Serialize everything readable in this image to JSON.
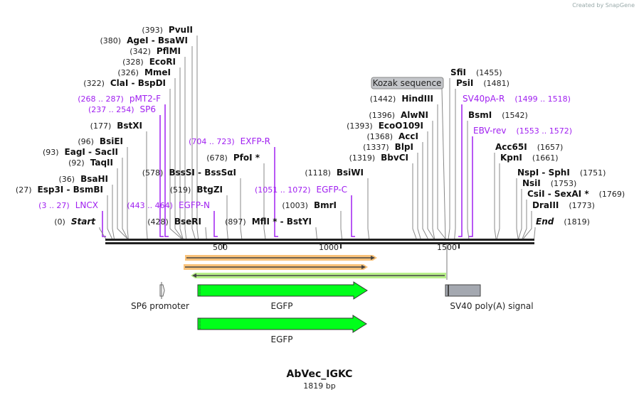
{
  "credit": "Created by SnapGene",
  "title": "AbVec_IGKC",
  "length": "1819 bp",
  "ruler": [
    "500",
    "1000",
    "1500"
  ],
  "sites": [
    {
      "pos": "(393)",
      "name": "PvuII",
      "kind": "enzyme"
    },
    {
      "pos": "(380)",
      "name": "AgeI  -  BsaWI",
      "kind": "enzyme"
    },
    {
      "pos": "(342)",
      "name": "PflMI",
      "kind": "enzyme"
    },
    {
      "pos": "(328)",
      "name": "EcoRI",
      "kind": "enzyme"
    },
    {
      "pos": "(326)",
      "name": "MmeI",
      "kind": "enzyme"
    },
    {
      "pos": "(322)",
      "name": "ClaI  -  BspDI",
      "kind": "enzyme"
    },
    {
      "pos": "(268 .. 287)",
      "name": "pMT2-F",
      "kind": "primer"
    },
    {
      "pos": "(237 .. 254)",
      "name": "SP6",
      "kind": "primer"
    },
    {
      "pos": "(177)",
      "name": "BstXI",
      "kind": "enzyme"
    },
    {
      "pos": "(96)",
      "name": "BsiEI",
      "kind": "enzyme"
    },
    {
      "pos": "(93)",
      "name": "EagI  -  SacII",
      "kind": "enzyme"
    },
    {
      "pos": "(92)",
      "name": "TaqII",
      "kind": "enzyme"
    },
    {
      "pos": "(36)",
      "name": "BsaHI",
      "kind": "enzyme"
    },
    {
      "pos": "(27)",
      "name": "Esp3I  -  BsmBI",
      "kind": "enzyme"
    },
    {
      "pos": "(3 .. 27)",
      "name": "LNCX",
      "kind": "primer"
    },
    {
      "pos": "(0)",
      "name": "Start",
      "kind": "end"
    },
    {
      "pos": "(578)",
      "name": "BssSI  -  BssSαI",
      "kind": "enzyme"
    },
    {
      "pos": "(519)",
      "name": "BtgZI",
      "kind": "enzyme"
    },
    {
      "pos": "(443 .. 464)",
      "name": "EGFP-N",
      "kind": "primer"
    },
    {
      "pos": "(428)",
      "name": "BseRI",
      "kind": "enzyme"
    },
    {
      "pos": "(704 .. 723)",
      "name": "EXFP-R",
      "kind": "primer"
    },
    {
      "pos": "(678)",
      "name": "PfoI *",
      "kind": "enzyme"
    },
    {
      "pos": "(897)",
      "name": "MflI *  -  BstYI",
      "kind": "enzyme"
    },
    {
      "pos": "(1051 .. 1072)",
      "name": "EGFP-C",
      "kind": "primer"
    },
    {
      "pos": "(1003)",
      "name": "BmrI",
      "kind": "enzyme"
    },
    {
      "pos": "(1118)",
      "name": "BsiWI",
      "kind": "enzyme"
    },
    {
      "pos": "(1442)",
      "name": "HindIII",
      "kind": "enzyme"
    },
    {
      "pos": "(1396)",
      "name": "AlwNI",
      "kind": "enzyme"
    },
    {
      "pos": "(1393)",
      "name": "EcoO109I",
      "kind": "enzyme"
    },
    {
      "pos": "(1368)",
      "name": "AccI",
      "kind": "enzyme"
    },
    {
      "pos": "(1337)",
      "name": "BlpI",
      "kind": "enzyme"
    },
    {
      "pos": "(1319)",
      "name": "BbvCI",
      "kind": "enzyme"
    },
    {
      "pos": "(1455)",
      "name": "SfiI",
      "kind": "enzyme"
    },
    {
      "pos": "(1481)",
      "name": "PsiI",
      "kind": "enzyme"
    },
    {
      "pos": "(1499 .. 1518)",
      "name": "SV40pA-R",
      "kind": "primer"
    },
    {
      "pos": "(1542)",
      "name": "BsmI",
      "kind": "enzyme"
    },
    {
      "pos": "(1553 .. 1572)",
      "name": "EBV-rev",
      "kind": "primer"
    },
    {
      "pos": "(1657)",
      "name": "Acc65I",
      "kind": "enzyme"
    },
    {
      "pos": "(1661)",
      "name": "KpnI",
      "kind": "enzyme"
    },
    {
      "pos": "(1751)",
      "name": "NspI  -  SphI",
      "kind": "enzyme"
    },
    {
      "pos": "(1753)",
      "name": "NsiI",
      "kind": "enzyme"
    },
    {
      "pos": "(1769)",
      "name": "CsiI  -  SexAI *",
      "kind": "enzyme"
    },
    {
      "pos": "(1773)",
      "name": "DraIII",
      "kind": "enzyme"
    },
    {
      "pos": "(1819)",
      "name": "End",
      "kind": "end"
    }
  ],
  "kozak_label": "Kozak sequence",
  "features": {
    "sp6_promoter": "SP6 promoter",
    "egfp_1": "EGFP",
    "sv40": "SV40 poly(A) signal",
    "egfp_2": "EGFP"
  },
  "colors": {
    "primer": "#a020f0",
    "egfp": "#00ff1a",
    "orf": "#f9c27a",
    "orf_rev": "#b8f08a",
    "polyA": "#a4a8b0"
  }
}
